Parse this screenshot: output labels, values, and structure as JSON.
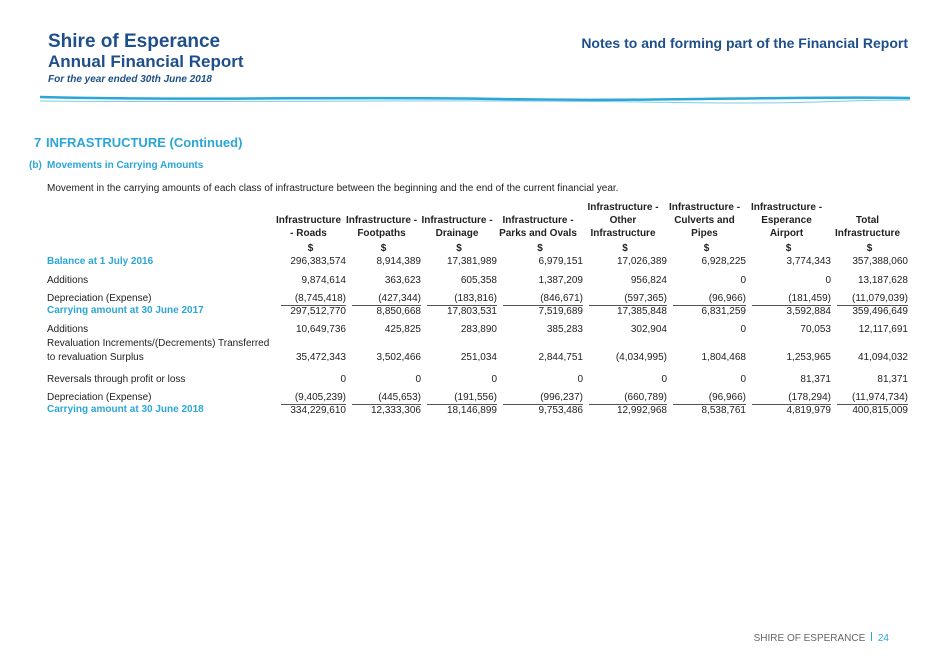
{
  "header": {
    "title": "Shire of Esperance",
    "subtitle": "Annual Financial Report",
    "period": "For the year ended 30th June 2018",
    "right_title": "Notes to and forming part of the Financial Report"
  },
  "section": {
    "number": "7",
    "title": "INFRASTRUCTURE (Continued)",
    "sub_label": "(b)",
    "sub_title": "Movements in Carrying Amounts",
    "description": "Movement in the carrying amounts of each class of infrastructure between the beginning and the end of the current financial year."
  },
  "table": {
    "columns": [
      [
        "Infrastructure",
        "- Roads"
      ],
      [
        "Infrastructure -",
        "Footpaths"
      ],
      [
        "Infrastructure -",
        "Drainage"
      ],
      [
        "Infrastructure -",
        "Parks and Ovals"
      ],
      [
        "Infrastructure -",
        "Other",
        "Infrastructure"
      ],
      [
        "Infrastructure -",
        "Culverts and",
        "Pipes"
      ],
      [
        "Infrastructure -",
        "Esperance",
        "Airport"
      ],
      [
        "Total",
        "Infrastructure"
      ]
    ],
    "units": [
      "$",
      "$",
      "$",
      "$",
      "$",
      "$",
      "$",
      "$"
    ],
    "rows": [
      {
        "label": [
          "Balance at 1 July 2016"
        ],
        "values": [
          "296,383,574",
          "8,914,389",
          "17,381,989",
          "6,979,151",
          "17,026,389",
          "6,928,225",
          "3,774,343",
          "357,388,060"
        ]
      },
      {
        "label": [
          "Additions"
        ],
        "values": [
          "9,874,614",
          "363,623",
          "605,358",
          "1,387,209",
          "956,824",
          "0",
          "0",
          "13,187,628"
        ]
      },
      {
        "label": [
          "Depreciation (Expense)"
        ],
        "values": [
          "(8,745,418)",
          "(427,344)",
          "(183,816)",
          "(846,671)",
          "(597,365)",
          "(96,966)",
          "(181,459)",
          "(11,079,039)"
        ]
      },
      {
        "label": [
          "Carrying amount at 30 June 2017"
        ],
        "values": [
          "297,512,770",
          "8,850,668",
          "17,803,531",
          "7,519,689",
          "17,385,848",
          "6,831,259",
          "3,592,884",
          "359,496,649"
        ]
      },
      {
        "label": [
          "Additions"
        ],
        "values": [
          "10,649,736",
          "425,825",
          "283,890",
          "385,283",
          "302,904",
          "0",
          "70,053",
          "12,117,691"
        ]
      },
      {
        "label": [
          "Revaluation Increments/(Decrements) Transferred",
          "to revaluation Surplus"
        ],
        "values": [
          "35,472,343",
          "3,502,466",
          "251,034",
          "2,844,751",
          "(4,034,995)",
          "1,804,468",
          "1,253,965",
          "41,094,032"
        ]
      },
      {
        "label": [
          "Reversals through profit or loss"
        ],
        "values": [
          "0",
          "0",
          "0",
          "0",
          "0",
          "0",
          "81,371",
          "81,371"
        ]
      },
      {
        "label": [
          "Depreciation (Expense)"
        ],
        "values": [
          "(9,405,239)",
          "(445,653)",
          "(191,556)",
          "(996,237)",
          "(660,789)",
          "(96,966)",
          "(178,294)",
          "(11,974,734)"
        ]
      },
      {
        "label": [
          "Carrying amount at 30 June 2018"
        ],
        "values": [
          "334,229,610",
          "12,333,306",
          "18,146,899",
          "9,753,486",
          "12,992,968",
          "8,538,761",
          "4,819,979",
          "400,815,009"
        ]
      }
    ]
  },
  "footer": {
    "name": "SHIRE OF ESPERANCE",
    "page": "24"
  }
}
